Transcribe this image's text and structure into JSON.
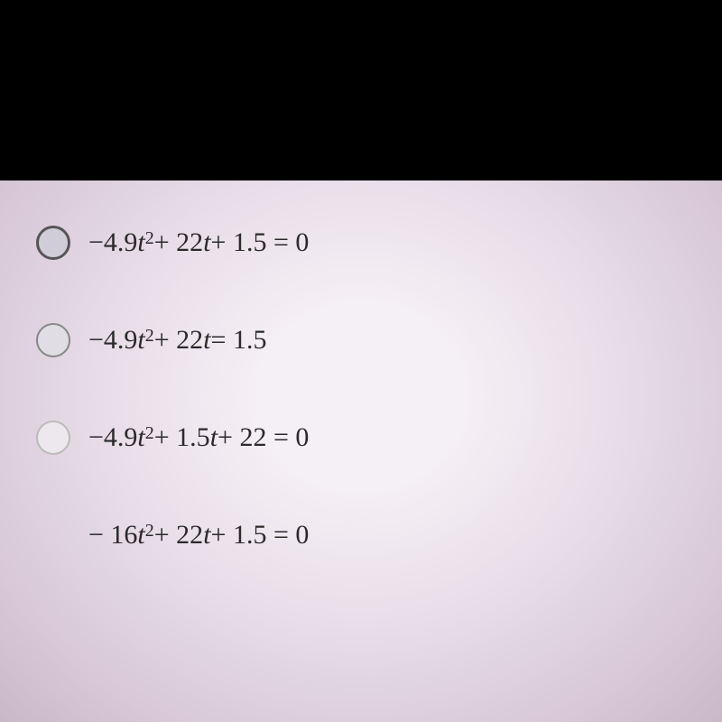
{
  "layout": {
    "black_bar_color": "#000000",
    "content_bg_center": "#f5f0f5",
    "content_bg_outer": "#c8b8c8",
    "font_family": "Times New Roman"
  },
  "options": [
    {
      "selected": true,
      "faded": false,
      "parts": {
        "prefix": "−4.9",
        "var1": "t",
        "exp": "2",
        "mid": " + 22",
        "var2": "t",
        "suffix": " + 1.5 = 0"
      }
    },
    {
      "selected": false,
      "faded": false,
      "parts": {
        "prefix": "−4.9",
        "var1": "t",
        "exp": "2",
        "mid": " + 22",
        "var2": "t",
        "suffix": " = 1.5"
      }
    },
    {
      "selected": false,
      "faded": true,
      "parts": {
        "prefix": "−4.9",
        "var1": "t",
        "exp": "2",
        "mid": " + 1.5",
        "var2": "t",
        "suffix": " + 22 = 0"
      }
    },
    {
      "selected": false,
      "faded": false,
      "no_radio": true,
      "parts": {
        "prefix": "− 16",
        "var1": "t",
        "exp": "2",
        "mid": " + 22",
        "var2": "t",
        "suffix": " + 1.5 = 0"
      }
    }
  ]
}
